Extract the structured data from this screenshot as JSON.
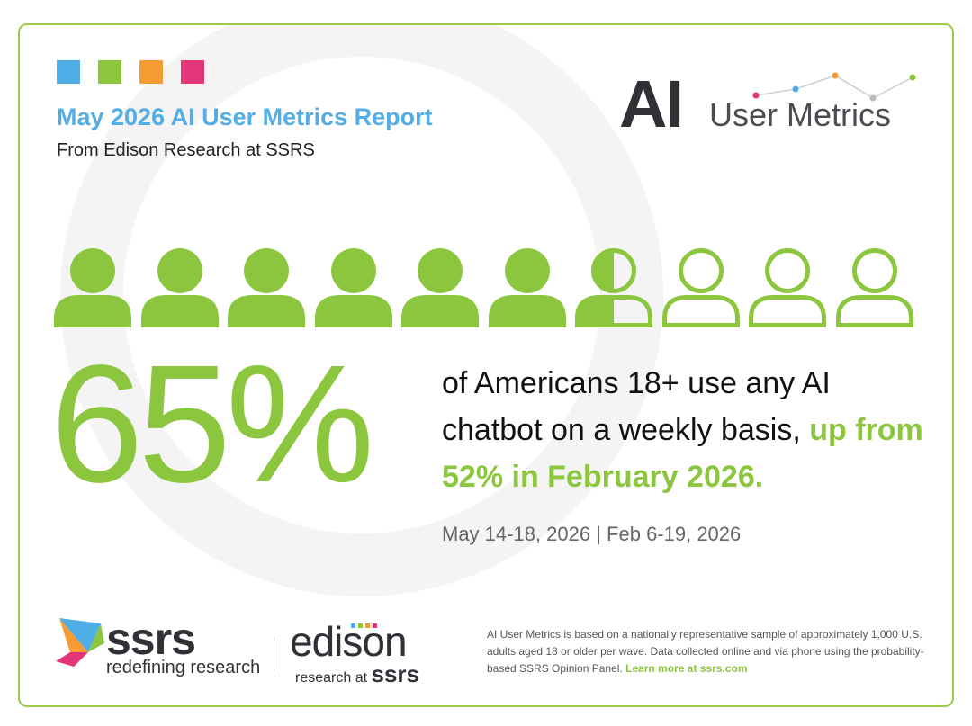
{
  "header": {
    "title": "May 2026 AI User Metrics Report",
    "subtitle": "From Edison Research at SSRS",
    "color_squares": [
      "#4eaee5",
      "#8cc63e",
      "#f59b33",
      "#e2357a"
    ]
  },
  "logo": {
    "ai": "AI",
    "user_metrics": "User Metrics"
  },
  "people_graphic": {
    "total": 10,
    "filled": 6.5,
    "icon": "person-icon",
    "color": "#8cc63e"
  },
  "stat": {
    "value": "65%",
    "statement": "of Americans 18+ use any AI chatbot on a weekly basis,",
    "highlight": "up from 52% in February 2026.",
    "dates": "May 14-18, 2026 | Feb 6-19, 2026"
  },
  "footer": {
    "ssrs_name": "ssrs",
    "ssrs_tagline": "redefining research",
    "edison_name": "edison",
    "edison_tagline_prefix": "research at",
    "edison_tagline_brand": "ssrs",
    "note": "AI User Metrics is based on a nationally representative sample of approximately 1,000 U.S. adults aged 18 or older per wave. Data collected online and via phone using the probability-based SSRS Opinion Panel.",
    "learn_more": "Learn more at ssrs.com"
  },
  "colors": {
    "accent_green": "#8cc63e",
    "title_blue": "#54ade4",
    "dark": "#2f3136"
  }
}
